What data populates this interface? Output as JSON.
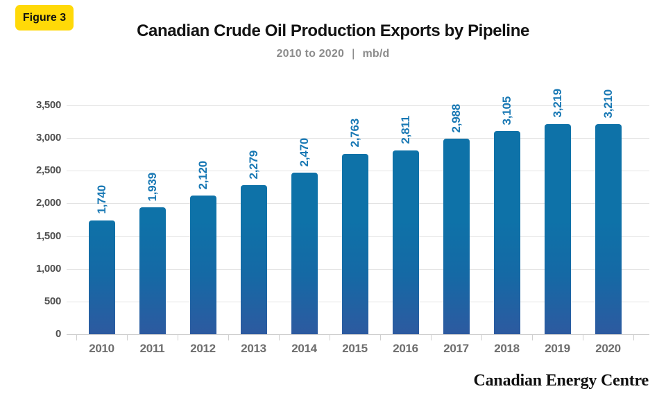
{
  "figure_badge": {
    "label": "Figure 3"
  },
  "header": {
    "title": "Canadian Crude Oil Production Exports by Pipeline",
    "subtitle_range": "2010 to 2020",
    "subtitle_divider": "|",
    "subtitle_unit": "mb/d"
  },
  "chart_data": {
    "type": "bar",
    "title": "Canadian Crude Oil Production Exports by Pipeline",
    "subtitle": "2010 to 2020 | mb/d",
    "unit": "mb/d",
    "categories": [
      "2010",
      "2011",
      "2012",
      "2013",
      "2014",
      "2015",
      "2016",
      "2017",
      "2018",
      "2019",
      "2020"
    ],
    "values": [
      1740,
      1939,
      2120,
      2279,
      2470,
      2763,
      2811,
      2988,
      3105,
      3219,
      3210
    ],
    "value_labels": [
      "1,740",
      "1,939",
      "2,120",
      "2,279",
      "2,470",
      "2,763",
      "2,811",
      "2,988",
      "3,105",
      "3,219",
      "3,210"
    ],
    "xlabel": "",
    "ylabel": "",
    "ylim": [
      0,
      3500
    ],
    "ytick_step": 500,
    "ytick_labels": [
      "0",
      "500",
      "1,000",
      "1,500",
      "2,000",
      "2,500",
      "3,000",
      "3,500"
    ],
    "grid": true,
    "legend_position": "none",
    "value_label_rotation": -90
  },
  "footer": {
    "brand": "Canadian Energy Centre"
  },
  "colors": {
    "accent_yellow": "#FFD908",
    "bar_top": "#0E72A8",
    "bar_mid": "#1569A5",
    "bar_bottom": "#2D5AA0",
    "value_label": "#1878B4",
    "grid_line": "#E3E3E3",
    "axis_line": "#CFCFCF",
    "y_label": "#4E4E4E",
    "x_label": "#6D6D6D",
    "subtitle": "#8C8C8C"
  }
}
